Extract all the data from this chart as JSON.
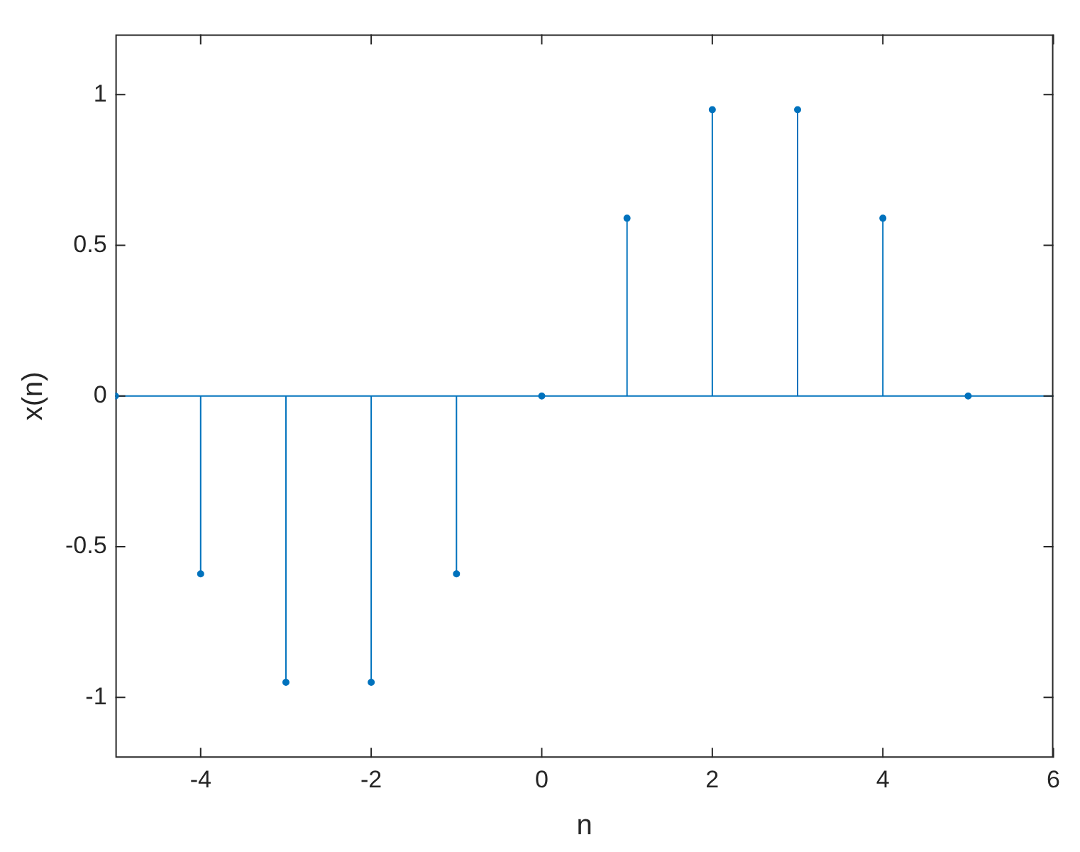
{
  "chart_data": {
    "type": "lollipop",
    "xlabel": "n",
    "ylabel": "x(n)",
    "x": [
      -5,
      -4,
      -3,
      -2,
      -1,
      0,
      1,
      2,
      3,
      4,
      5
    ],
    "values": [
      0,
      -0.59,
      -0.95,
      -0.95,
      -0.59,
      0,
      0.59,
      0.95,
      0.95,
      0.59,
      0
    ],
    "color": "#0072bd",
    "marker": "circle",
    "xlim": [
      -5,
      6
    ],
    "xticks": [
      -4,
      -2,
      0,
      2,
      4,
      6
    ],
    "ylim": [
      -1.2,
      1.2
    ],
    "yticks": [
      -1,
      -0.5,
      0,
      0.5,
      1
    ],
    "ref_lines": [
      {
        "axis": "y",
        "value": 0,
        "color": "#0072bd"
      }
    ]
  }
}
